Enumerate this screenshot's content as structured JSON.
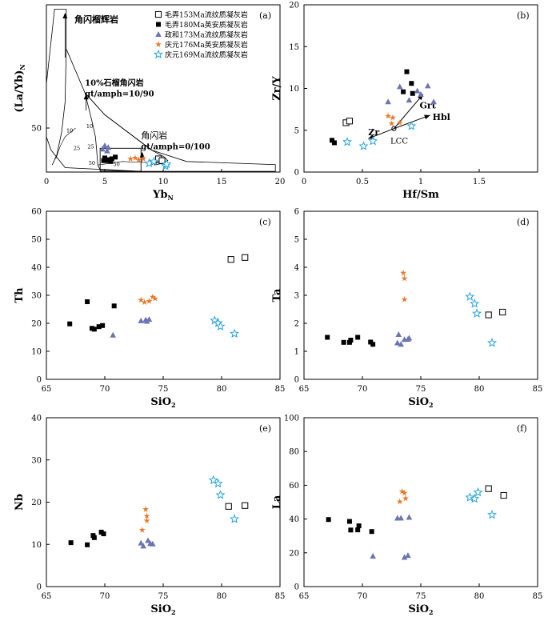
{
  "colors": {
    "maonong153": "#000000",
    "maonong180": "#000000",
    "zhengqing173": "#6b76b0",
    "qingyuan176": "#e8792b",
    "qingyuan169": "#2aa4dd"
  },
  "legend": [
    {
      "key": "maonong153",
      "marker": "square-open",
      "label": "毛弄153Ma流纹质凝灰岩"
    },
    {
      "key": "maonong180",
      "marker": "square-filled",
      "label": "毛弄180Ma英安质凝灰岩"
    },
    {
      "key": "zhengqing173",
      "marker": "triangle",
      "label": "政和173Ma流纹质凝灰岩"
    },
    {
      "key": "qingyuan176",
      "marker": "asterisk",
      "label": "庆元176Ma英安质凝灰岩"
    },
    {
      "key": "qingyuan169",
      "marker": "star-open",
      "label": "庆元169Ma流纹质凝灰岩"
    }
  ],
  "chart_data": [
    {
      "id": "a",
      "type": "scatter",
      "panel_label": "(a)",
      "xlabel": "Yb",
      "xlabel_sub": "N",
      "ylabel": "(La/Yb)",
      "ylabel_sub": "N",
      "xlim": [
        0,
        20
      ],
      "ylim": [
        0,
        190
      ],
      "xticks": [
        0,
        5,
        10,
        15,
        20
      ],
      "yticks": [
        50
      ],
      "annotations": {
        "garnet_pyroxenite": "角闪榴辉岩",
        "garnet_amph_line1": "10%石榴角闪岩",
        "garnet_amph_line2": "gt/amph=10/90",
        "amphibolite_line1": "角闪岩",
        "amphibolite_line2": "gt/amph=0/100",
        "curve_labels": [
          "10",
          "10",
          "25",
          "25",
          "50",
          "50",
          "10"
        ]
      },
      "series": [
        {
          "key": "maonong153",
          "points": [
            [
              9.6,
              15
            ],
            [
              9.9,
              13
            ]
          ]
        },
        {
          "key": "maonong180",
          "points": [
            [
              5.0,
              16
            ],
            [
              5.3,
              14
            ],
            [
              5.6,
              15
            ],
            [
              5.9,
              17
            ],
            [
              5.2,
              13
            ],
            [
              5.5,
              12
            ],
            [
              4.9,
              13
            ]
          ]
        },
        {
          "key": "zhengqing173",
          "points": [
            [
              5.0,
              30
            ],
            [
              5.3,
              28
            ],
            [
              5.2,
              24
            ],
            [
              4.8,
              26
            ]
          ]
        },
        {
          "key": "qingyuan176",
          "points": [
            [
              7.2,
              15
            ],
            [
              7.6,
              16
            ],
            [
              7.9,
              14
            ],
            [
              8.3,
              15
            ]
          ]
        },
        {
          "key": "qingyuan169",
          "points": [
            [
              8.8,
              10
            ],
            [
              9.2,
              12
            ],
            [
              10.2,
              7
            ],
            [
              10.3,
              9
            ]
          ]
        }
      ]
    },
    {
      "id": "b",
      "type": "scatter",
      "panel_label": "(b)",
      "xlabel": "Hf/Sm",
      "ylabel": "Zr/Y",
      "xlim": [
        0,
        2
      ],
      "ylim": [
        0,
        20
      ],
      "xticks": [
        0,
        0.5,
        1.0,
        1.5
      ],
      "xtick_labels": [
        "0",
        "0.5",
        "1",
        "1.5"
      ],
      "yticks": [
        0,
        5,
        10,
        15,
        20
      ],
      "annotations": {
        "grt": "Grt",
        "hbl": "Hbl",
        "zr": "Zr",
        "lcc": "LCC"
      },
      "series": [
        {
          "key": "maonong153",
          "points": [
            [
              0.36,
              5.9
            ],
            [
              0.39,
              6.1
            ]
          ]
        },
        {
          "key": "maonong180",
          "points": [
            [
              0.24,
              3.8
            ],
            [
              0.26,
              3.5
            ],
            [
              0.88,
              12.0
            ],
            [
              0.92,
              10.6
            ],
            [
              0.85,
              9.6
            ],
            [
              0.93,
              9.4
            ]
          ]
        },
        {
          "key": "zhengqing173",
          "points": [
            [
              0.72,
              8.4
            ],
            [
              0.82,
              10.2
            ],
            [
              0.97,
              9.7
            ],
            [
              1.0,
              9.3
            ],
            [
              1.06,
              10.3
            ],
            [
              1.11,
              8.4
            ],
            [
              0.9,
              8.6
            ]
          ]
        },
        {
          "key": "qingyuan176",
          "points": [
            [
              0.72,
              6.7
            ],
            [
              0.76,
              6.5
            ],
            [
              0.75,
              5.8
            ],
            [
              0.82,
              5.9
            ]
          ]
        },
        {
          "key": "qingyuan169",
          "points": [
            [
              0.37,
              3.6
            ],
            [
              0.51,
              3.1
            ],
            [
              0.59,
              3.7
            ],
            [
              0.92,
              5.5
            ]
          ]
        }
      ]
    },
    {
      "id": "c",
      "type": "scatter",
      "panel_label": "(c)",
      "xlabel": "SiO",
      "xlabel_sub": "2",
      "ylabel": "Th",
      "xlim": [
        65,
        85
      ],
      "ylim": [
        0,
        60
      ],
      "xticks": [
        65,
        70,
        75,
        80,
        85
      ],
      "yticks": [
        0,
        10,
        20,
        30,
        40,
        50,
        60
      ],
      "series": [
        {
          "key": "maonong153",
          "points": [
            [
              80.8,
              42.8
            ],
            [
              82.0,
              43.5
            ]
          ]
        },
        {
          "key": "maonong180",
          "points": [
            [
              67.0,
              19.8
            ],
            [
              68.5,
              27.7
            ],
            [
              68.9,
              18.2
            ],
            [
              69.1,
              17.9
            ],
            [
              69.5,
              18.8
            ],
            [
              69.8,
              19.2
            ],
            [
              70.8,
              26.2
            ]
          ]
        },
        {
          "key": "zhengqing173",
          "points": [
            [
              70.7,
              15.8
            ],
            [
              73.1,
              20.9
            ],
            [
              73.5,
              21.2
            ],
            [
              73.8,
              21.4
            ],
            [
              73.6,
              20.7
            ]
          ]
        },
        {
          "key": "qingyuan176",
          "points": [
            [
              73.1,
              28.3
            ],
            [
              73.4,
              27.5
            ],
            [
              73.8,
              27.9
            ],
            [
              74.1,
              29.4
            ],
            [
              74.3,
              28.8
            ]
          ]
        },
        {
          "key": "qingyuan169",
          "points": [
            [
              79.4,
              21.0
            ],
            [
              79.7,
              20.1
            ],
            [
              79.9,
              18.9
            ],
            [
              81.1,
              16.3
            ]
          ]
        }
      ]
    },
    {
      "id": "d",
      "type": "scatter",
      "panel_label": "(d)",
      "xlabel": "SiO",
      "xlabel_sub": "2",
      "ylabel": "Ta",
      "xlim": [
        65,
        85
      ],
      "ylim": [
        0,
        6
      ],
      "xticks": [
        65,
        70,
        75,
        80,
        85
      ],
      "yticks": [
        0,
        1,
        2,
        3,
        4,
        5,
        6
      ],
      "series": [
        {
          "key": "maonong153",
          "points": [
            [
              80.8,
              2.3
            ],
            [
              82.0,
              2.4
            ]
          ]
        },
        {
          "key": "maonong180",
          "points": [
            [
              67.0,
              1.5
            ],
            [
              68.4,
              1.32
            ],
            [
              68.9,
              1.32
            ],
            [
              69.0,
              1.4
            ],
            [
              69.6,
              1.5
            ],
            [
              70.7,
              1.33
            ],
            [
              70.9,
              1.25
            ]
          ]
        },
        {
          "key": "zhengqing173",
          "points": [
            [
              73.0,
              1.3
            ],
            [
              73.1,
              1.6
            ],
            [
              73.3,
              1.25
            ],
            [
              73.6,
              1.42
            ],
            [
              73.9,
              1.43
            ],
            [
              74.0,
              1.47
            ]
          ]
        },
        {
          "key": "qingyuan176",
          "points": [
            [
              73.5,
              3.8
            ],
            [
              73.6,
              3.6
            ],
            [
              73.6,
              2.85
            ]
          ]
        },
        {
          "key": "qingyuan169",
          "points": [
            [
              79.2,
              2.95
            ],
            [
              79.6,
              2.7
            ],
            [
              79.8,
              2.35
            ],
            [
              81.1,
              1.3
            ]
          ]
        }
      ]
    },
    {
      "id": "e",
      "type": "scatter",
      "panel_label": "(e)",
      "xlabel": "SiO",
      "xlabel_sub": "2",
      "ylabel": "Nb",
      "xlim": [
        65,
        85
      ],
      "ylim": [
        0,
        40
      ],
      "xticks": [
        65,
        70,
        75,
        80,
        85
      ],
      "yticks": [
        0,
        10,
        20,
        30,
        40
      ],
      "series": [
        {
          "key": "maonong153",
          "points": [
            [
              80.6,
              19.0
            ],
            [
              82.0,
              19.2
            ]
          ]
        },
        {
          "key": "maonong180",
          "points": [
            [
              67.1,
              10.4
            ],
            [
              68.5,
              9.9
            ],
            [
              69.0,
              12.1
            ],
            [
              69.1,
              11.6
            ],
            [
              69.7,
              12.9
            ],
            [
              69.9,
              12.5
            ]
          ]
        },
        {
          "key": "zhengqing173",
          "points": [
            [
              73.1,
              10.3
            ],
            [
              73.3,
              9.6
            ],
            [
              73.7,
              10.9
            ],
            [
              73.9,
              10.2
            ],
            [
              74.1,
              10.1
            ]
          ]
        },
        {
          "key": "qingyuan176",
          "points": [
            [
              73.2,
              13.4
            ],
            [
              73.5,
              18.3
            ],
            [
              73.6,
              16.7
            ],
            [
              73.6,
              15.6
            ]
          ]
        },
        {
          "key": "qingyuan169",
          "points": [
            [
              79.3,
              25.2
            ],
            [
              79.7,
              24.4
            ],
            [
              79.9,
              21.7
            ],
            [
              81.1,
              16.0
            ]
          ]
        }
      ]
    },
    {
      "id": "f",
      "type": "scatter",
      "panel_label": "(f)",
      "xlabel": "SiO",
      "xlabel_sub": "2",
      "ylabel": "La",
      "xlim": [
        65,
        85
      ],
      "ylim": [
        0,
        100
      ],
      "xticks": [
        65,
        70,
        75,
        80,
        85
      ],
      "yticks": [
        0,
        20,
        40,
        60,
        80,
        100
      ],
      "series": [
        {
          "key": "maonong153",
          "points": [
            [
              80.8,
              58.0
            ],
            [
              82.1,
              54.0
            ]
          ]
        },
        {
          "key": "maonong180",
          "points": [
            [
              67.1,
              39.7
            ],
            [
              68.9,
              38.6
            ],
            [
              69.0,
              33.5
            ],
            [
              69.6,
              33.6
            ],
            [
              69.7,
              36.0
            ],
            [
              70.8,
              32.6
            ]
          ]
        },
        {
          "key": "zhengqing173",
          "points": [
            [
              70.9,
              18.0
            ],
            [
              73.0,
              40.5
            ],
            [
              73.3,
              40.6
            ],
            [
              73.6,
              17.3
            ],
            [
              73.9,
              18.4
            ],
            [
              74.0,
              41.0
            ]
          ]
        },
        {
          "key": "qingyuan176",
          "points": [
            [
              73.2,
              50.3
            ],
            [
              73.4,
              56.3
            ],
            [
              73.6,
              55.4
            ],
            [
              73.7,
              52.2
            ]
          ]
        },
        {
          "key": "qingyuan169",
          "points": [
            [
              79.2,
              52.8
            ],
            [
              79.6,
              52.0
            ],
            [
              79.9,
              55.8
            ],
            [
              81.1,
              42.5
            ]
          ]
        }
      ]
    }
  ]
}
